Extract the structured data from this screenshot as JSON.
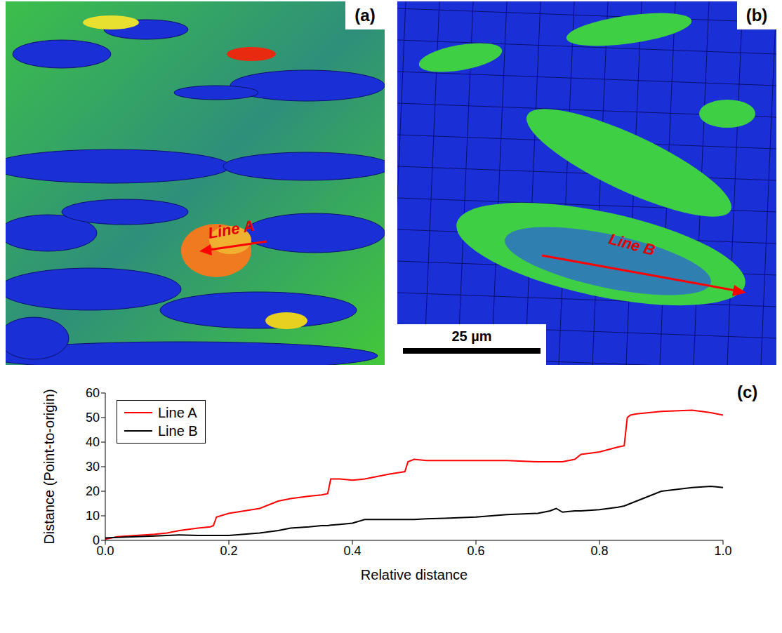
{
  "figure": {
    "panels": [
      {
        "label": "(a)",
        "annotation": "Line A"
      },
      {
        "label": "(b)",
        "annotation": "Line B",
        "scale_bar": "25 µm"
      },
      {
        "label": "(c)"
      }
    ]
  },
  "chart_data": {
    "type": "line",
    "x_label": "Relative distance",
    "y_label": "Distance (Point-to-origin)",
    "x": [
      0,
      0.02,
      0.05,
      0.08,
      0.1,
      0.12,
      0.15,
      0.17,
      0.175,
      0.18,
      0.2,
      0.25,
      0.28,
      0.3,
      0.33,
      0.35,
      0.36,
      0.365,
      0.38,
      0.4,
      0.42,
      0.43,
      0.45,
      0.46,
      0.485,
      0.49,
      0.5,
      0.52,
      0.55,
      0.6,
      0.65,
      0.7,
      0.72,
      0.73,
      0.74,
      0.76,
      0.77,
      0.8,
      0.83,
      0.84,
      0.845,
      0.85,
      0.86,
      0.9,
      0.95,
      0.98,
      1.0
    ],
    "series": [
      {
        "name": "Line A",
        "color": "#ff0000",
        "values": [
          0.5,
          1.5,
          2,
          2.5,
          3,
          4,
          5,
          5.5,
          6,
          9.5,
          11,
          13,
          16,
          17,
          18,
          18.5,
          19,
          25,
          25,
          24.5,
          25,
          25.5,
          26.5,
          27,
          28,
          32,
          33,
          32.5,
          32.5,
          32.5,
          32.5,
          32,
          32,
          32,
          32,
          33,
          35,
          36,
          38,
          38.5,
          50,
          51,
          51.5,
          52.5,
          53,
          52,
          51
        ]
      },
      {
        "name": "Line B",
        "color": "#000000",
        "values": [
          1,
          1.2,
          1.5,
          1.8,
          2,
          2.2,
          2,
          2,
          2,
          2,
          2,
          3,
          4,
          5,
          5.5,
          6,
          6,
          6.2,
          6.5,
          7,
          8.5,
          8.5,
          8.5,
          8.5,
          8.5,
          8.5,
          8.5,
          8.8,
          9,
          9.5,
          10.5,
          11,
          12,
          13,
          11.5,
          12,
          12,
          12.5,
          13.5,
          14,
          14.5,
          15,
          16,
          20,
          21.5,
          22,
          21.5
        ]
      }
    ],
    "xlim": [
      0,
      1
    ],
    "ylim": [
      0,
      60
    ],
    "xticks": [
      {
        "value": 0,
        "label": "0.0"
      },
      {
        "value": 0.2,
        "label": "0.2"
      },
      {
        "value": 0.4,
        "label": "0.4"
      },
      {
        "value": 0.6,
        "label": "0.6"
      },
      {
        "value": 0.8,
        "label": "0.8"
      },
      {
        "value": 1,
        "label": "1.0"
      }
    ],
    "yticks": [
      0,
      10,
      20,
      30,
      40,
      50,
      60
    ],
    "legend": "upper left",
    "grid": false
  }
}
